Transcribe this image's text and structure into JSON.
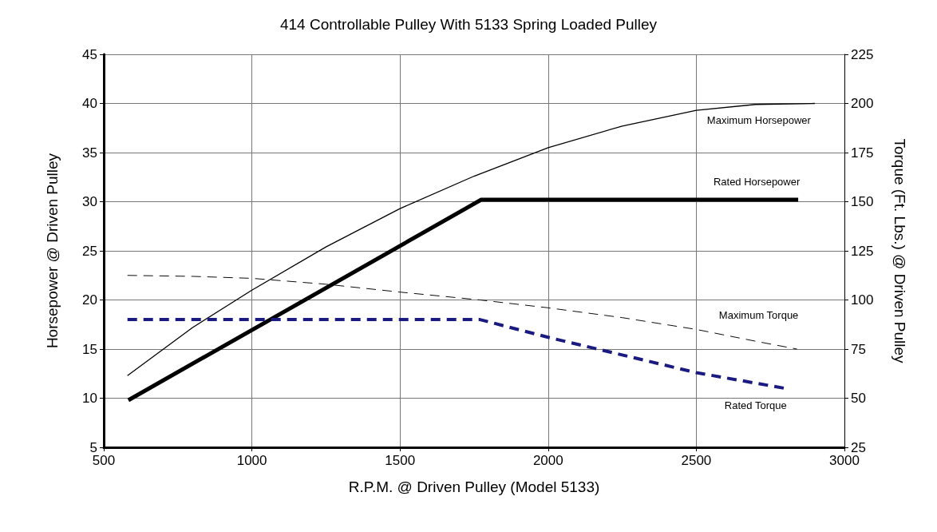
{
  "chart_data": {
    "type": "line",
    "title": "414 Controllable Pulley With 5133 Spring Loaded Pulley",
    "xlabel": "R.P.M. @ Driven Pulley (Model 5133)",
    "ylabel": "Horsepower @ Driven Pulley",
    "y2label": "Torque (Ft. Lbs.) @ Driven Pulley",
    "xlim": [
      500,
      3000
    ],
    "xticks": [
      500,
      1000,
      1500,
      2000,
      2500,
      3000
    ],
    "ylim": [
      5,
      45
    ],
    "yticks": [
      5,
      10,
      15,
      20,
      25,
      30,
      35,
      40,
      45
    ],
    "y2lim": [
      25,
      225
    ],
    "y2ticks": [
      25,
      50,
      75,
      100,
      125,
      150,
      175,
      200,
      225
    ],
    "grid": true,
    "legend": false,
    "marker": "none",
    "series": [
      {
        "name": "Maximum Horsepower",
        "color": "#000000",
        "line_style": "solid",
        "x": [
          580,
          800,
          1000,
          1250,
          1500,
          1750,
          2000,
          2250,
          2500,
          2700,
          2900
        ],
        "values": [
          12.3,
          17.2,
          21,
          25.4,
          29.3,
          32.6,
          35.5,
          37.7,
          39.3,
          39.9,
          40
        ]
      },
      {
        "name": "Rated Horsepower",
        "color": "#000000",
        "line_style": "solid",
        "x": [
          583,
          1774,
          2844
        ],
        "values": [
          9.8,
          30.2,
          30.2
        ]
      },
      {
        "name": "Maximum Torque",
        "color": "#000000",
        "line_style": "dashed",
        "axis": "y2",
        "x": [
          580,
          800,
          1000,
          1250,
          1500,
          1770,
          2000,
          2250,
          2500,
          2700,
          2840
        ],
        "values": [
          112.5,
          112,
          111,
          108,
          104,
          100,
          96,
          91,
          85,
          79,
          75
        ]
      },
      {
        "name": "Rated Torque",
        "color": "#1a1a80",
        "line_style": "dashed",
        "axis": "y2",
        "x": [
          580,
          1770,
          2000,
          2250,
          2500,
          2800
        ],
        "values": [
          90,
          90,
          81,
          72,
          63,
          55
        ]
      }
    ]
  }
}
